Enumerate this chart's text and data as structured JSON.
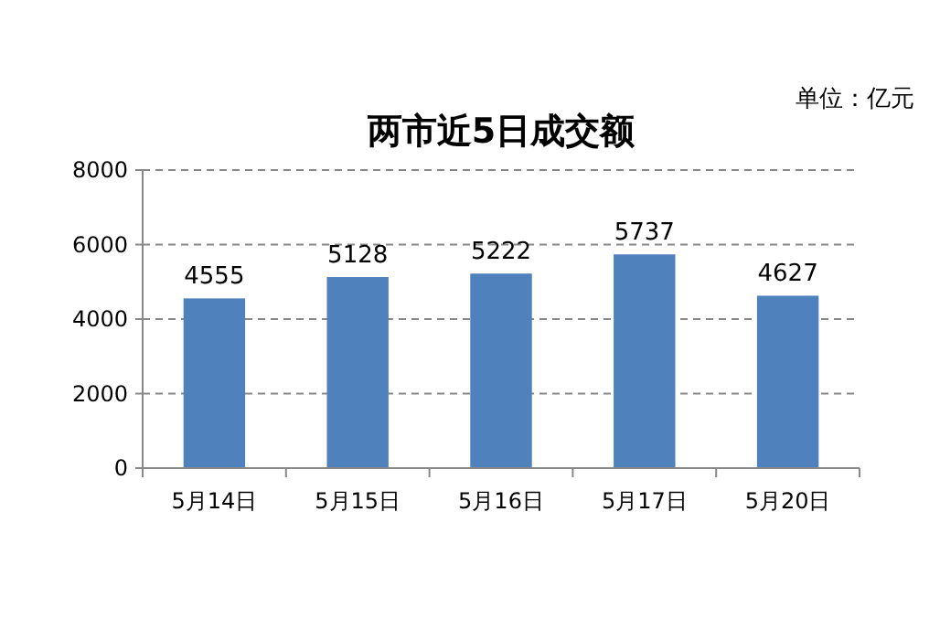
{
  "chart_data": {
    "type": "bar",
    "title": "两市近5日成交额",
    "annotations": [
      "单位：亿元"
    ],
    "categories": [
      "5月14日",
      "5月15日",
      "5月16日",
      "5月17日",
      "5月20日"
    ],
    "values": [
      4555,
      5128,
      5222,
      5737,
      4627
    ],
    "color": "#4f81bd",
    "ylim": [
      0,
      8000
    ],
    "yticks": [
      0,
      2000,
      4000,
      6000,
      8000
    ],
    "grid": "y",
    "data_labels": true
  }
}
